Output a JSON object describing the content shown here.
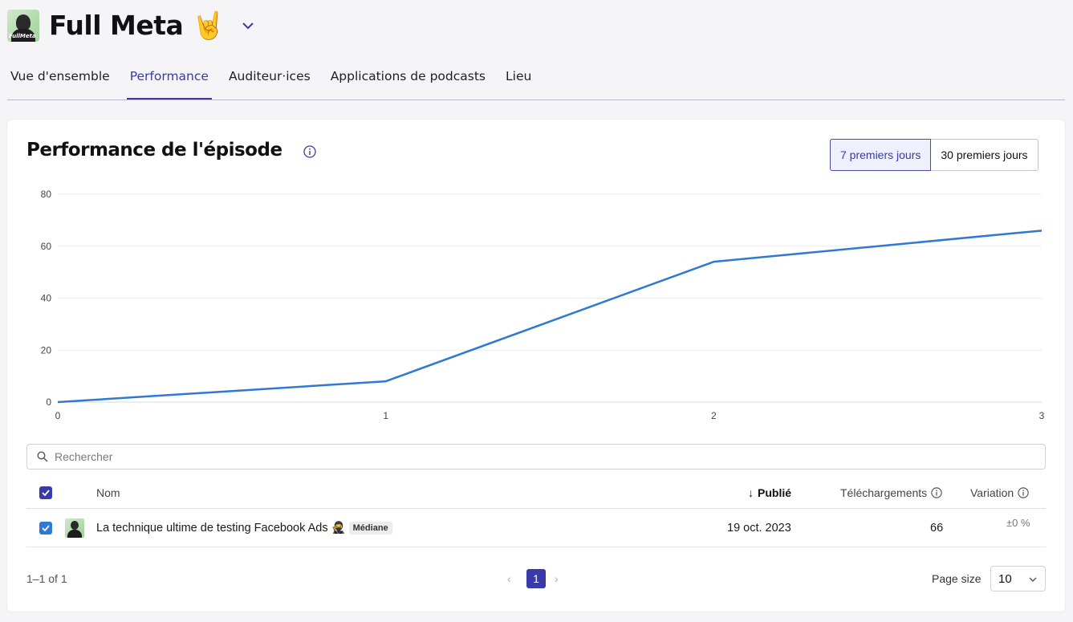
{
  "header": {
    "title": "Full Meta",
    "emoji": "🤘",
    "avatar_tag": "FullMeta"
  },
  "tabs": [
    {
      "label": "Vue d'ensemble"
    },
    {
      "label": "Performance"
    },
    {
      "label": "Auditeur·ices"
    },
    {
      "label": "Applications de podcasts"
    },
    {
      "label": "Lieu"
    }
  ],
  "active_tab": "Performance",
  "card": {
    "title": "Performance de l'épisode",
    "period_options": [
      "7 premiers jours",
      "30 premiers jours"
    ],
    "selected_period": "7 premiers jours"
  },
  "chart_data": {
    "type": "line",
    "x": [
      0,
      1,
      2,
      3
    ],
    "series": [
      {
        "values": [
          0,
          8,
          54,
          66
        ]
      }
    ],
    "xticks": [
      "0",
      "1",
      "2",
      "3"
    ],
    "yticks": [
      "0",
      "20",
      "40",
      "60",
      "80"
    ],
    "ylim": [
      0,
      80
    ],
    "xlim": [
      0,
      3
    ],
    "grid": true,
    "line_color": "#2f78d4"
  },
  "search": {
    "placeholder": "Rechercher"
  },
  "table": {
    "columns": {
      "name": "Nom",
      "published": "Publié",
      "downloads": "Téléchargements",
      "variation": "Variation"
    },
    "sort_indicator": "↓",
    "rows": [
      {
        "name": "La technique ultime de testing Facebook Ads",
        "emoji": "🥷",
        "badge": "Médiane",
        "published": "19 oct. 2023",
        "downloads": "66",
        "variation": "±0 %"
      }
    ]
  },
  "footer": {
    "range": "1–1 of 1",
    "current_page": "1",
    "page_size_label": "Page size",
    "page_size": "10"
  },
  "colors": {
    "accent": "#3a3aa8",
    "line": "#2f78d4"
  }
}
